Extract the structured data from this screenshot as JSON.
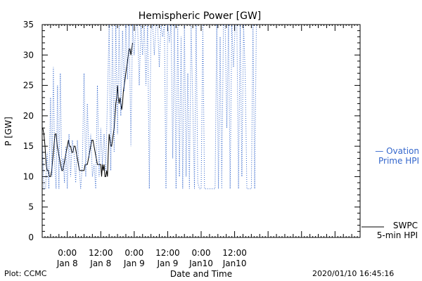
{
  "chart_data": {
    "type": "line",
    "title": "Hemispheric Power [GW]",
    "ylabel": "P [GW]",
    "xlabel": "Date and Time",
    "ylim": [
      0,
      35
    ],
    "xlim_hours": [
      -9,
      105
    ],
    "y_ticks": [
      0,
      5,
      10,
      15,
      20,
      25,
      30,
      35
    ],
    "x_ticks": [
      {
        "hour": 0,
        "label": [
          "0:00",
          "Jan 8"
        ]
      },
      {
        "hour": 12,
        "label": [
          "12:00",
          "Jan 8"
        ]
      },
      {
        "hour": 24,
        "label": [
          "0:00",
          "Jan 9"
        ]
      },
      {
        "hour": 36,
        "label": [
          "12:00",
          "Jan 9"
        ]
      },
      {
        "hour": 48,
        "label": [
          "0:00",
          "Jan10"
        ]
      },
      {
        "hour": 60,
        "label": [
          "12:00",
          "Jan10"
        ]
      }
    ],
    "series": [
      {
        "name": "SWPC 5-min HPI",
        "color": "#000000",
        "style": "solid",
        "points": [
          [
            -8.8,
            18
          ],
          [
            -8.4,
            17
          ],
          [
            -8.0,
            15
          ],
          [
            -7.6,
            12
          ],
          [
            -7.2,
            11
          ],
          [
            -6.8,
            11
          ],
          [
            -6.4,
            10
          ],
          [
            -6.0,
            10
          ],
          [
            -5.6,
            11
          ],
          [
            -5.2,
            13
          ],
          [
            -4.8,
            15
          ],
          [
            -4.4,
            17
          ],
          [
            -4.0,
            17
          ],
          [
            -3.6,
            15
          ],
          [
            -3.2,
            14
          ],
          [
            -2.8,
            13
          ],
          [
            -2.4,
            12
          ],
          [
            -2.0,
            11
          ],
          [
            -1.6,
            11
          ],
          [
            -1.2,
            12
          ],
          [
            -0.8,
            13
          ],
          [
            -0.4,
            14
          ],
          [
            0.0,
            15
          ],
          [
            0.4,
            16
          ],
          [
            0.8,
            15
          ],
          [
            1.2,
            15
          ],
          [
            1.6,
            14
          ],
          [
            2.0,
            14
          ],
          [
            2.4,
            15
          ],
          [
            2.8,
            15
          ],
          [
            3.2,
            14
          ],
          [
            3.6,
            13
          ],
          [
            4.0,
            12
          ],
          [
            4.4,
            11
          ],
          [
            4.8,
            11
          ],
          [
            5.2,
            11
          ],
          [
            5.6,
            11
          ],
          [
            6.0,
            11
          ],
          [
            6.4,
            12
          ],
          [
            6.8,
            12
          ],
          [
            7.2,
            12
          ],
          [
            7.6,
            13
          ],
          [
            8.0,
            14
          ],
          [
            8.4,
            15
          ],
          [
            8.8,
            16
          ],
          [
            9.2,
            16
          ],
          [
            9.6,
            15
          ],
          [
            10.0,
            14
          ],
          [
            10.4,
            13
          ],
          [
            10.8,
            12
          ],
          [
            11.2,
            12
          ],
          [
            11.6,
            12
          ],
          [
            12.0,
            12
          ],
          [
            12.3,
            10
          ],
          [
            12.6,
            12
          ],
          [
            12.9,
            11
          ],
          [
            13.2,
            12
          ],
          [
            13.5,
            10
          ],
          [
            13.8,
            10
          ],
          [
            14.1,
            11
          ],
          [
            14.4,
            10
          ],
          [
            14.7,
            14
          ],
          [
            15.0,
            17
          ],
          [
            15.3,
            16
          ],
          [
            15.6,
            15
          ],
          [
            15.9,
            15
          ],
          [
            16.2,
            16
          ],
          [
            16.5,
            17
          ],
          [
            16.8,
            18
          ],
          [
            17.1,
            20
          ],
          [
            17.4,
            22
          ],
          [
            17.7,
            23
          ],
          [
            18.0,
            25
          ],
          [
            18.3,
            23
          ],
          [
            18.6,
            22
          ],
          [
            18.9,
            23
          ],
          [
            19.2,
            22
          ],
          [
            19.5,
            21
          ],
          [
            19.8,
            22
          ],
          [
            20.1,
            24
          ],
          [
            20.4,
            25
          ],
          [
            20.7,
            26
          ],
          [
            21.0,
            27
          ],
          [
            21.3,
            28
          ],
          [
            21.6,
            29
          ],
          [
            21.9,
            30
          ],
          [
            22.2,
            31
          ],
          [
            22.5,
            31
          ],
          [
            22.8,
            30
          ],
          [
            23.1,
            31
          ],
          [
            23.4,
            32
          ]
        ]
      },
      {
        "name": "Ovation Prime HPI",
        "color": "#3366cc",
        "style": "dotted",
        "points": [
          [
            -9.0,
            16
          ],
          [
            -8.4,
            8
          ],
          [
            -7.8,
            8
          ],
          [
            -7.2,
            14
          ],
          [
            -6.6,
            8
          ],
          [
            -6.0,
            23
          ],
          [
            -5.5,
            10
          ],
          [
            -5.0,
            28
          ],
          [
            -4.5,
            12
          ],
          [
            -4.0,
            8
          ],
          [
            -3.5,
            25
          ],
          [
            -3.0,
            8
          ],
          [
            -2.5,
            27
          ],
          [
            -2.0,
            11
          ],
          [
            -1.5,
            13
          ],
          [
            -1.0,
            9
          ],
          [
            -0.5,
            15
          ],
          [
            0.0,
            8
          ],
          [
            0.6,
            17
          ],
          [
            1.2,
            10
          ],
          [
            1.8,
            16
          ],
          [
            2.4,
            14
          ],
          [
            3.0,
            9
          ],
          [
            3.6,
            16
          ],
          [
            4.2,
            12
          ],
          [
            4.8,
            8
          ],
          [
            5.4,
            12
          ],
          [
            6.0,
            27
          ],
          [
            6.6,
            10
          ],
          [
            7.2,
            22
          ],
          [
            7.8,
            13
          ],
          [
            8.4,
            17
          ],
          [
            9.0,
            10
          ],
          [
            9.6,
            12
          ],
          [
            10.2,
            8
          ],
          [
            10.8,
            25
          ],
          [
            11.4,
            10
          ],
          [
            12.0,
            18
          ],
          [
            12.6,
            12
          ],
          [
            13.2,
            17
          ],
          [
            13.8,
            11
          ],
          [
            14.4,
            23
          ],
          [
            15.0,
            35
          ],
          [
            15.6,
            11
          ],
          [
            16.2,
            35
          ],
          [
            16.8,
            14
          ],
          [
            17.4,
            35
          ],
          [
            18.0,
            17
          ],
          [
            18.6,
            35
          ],
          [
            19.2,
            20
          ],
          [
            19.8,
            34
          ],
          [
            20.4,
            24
          ],
          [
            21.0,
            35
          ],
          [
            21.6,
            26
          ],
          [
            22.2,
            35
          ],
          [
            22.8,
            15
          ],
          [
            23.4,
            35
          ],
          [
            24.0,
            30
          ],
          [
            24.6,
            35
          ],
          [
            25.2,
            35
          ],
          [
            25.8,
            25
          ],
          [
            26.4,
            35
          ],
          [
            27.0,
            30
          ],
          [
            27.6,
            35
          ],
          [
            28.2,
            25
          ],
          [
            28.8,
            35
          ],
          [
            29.4,
            8
          ],
          [
            30.0,
            34
          ],
          [
            30.6,
            35
          ],
          [
            31.2,
            30
          ],
          [
            31.8,
            35
          ],
          [
            32.4,
            35
          ],
          [
            33.0,
            28
          ],
          [
            33.6,
            35
          ],
          [
            34.2,
            33
          ],
          [
            34.8,
            35
          ],
          [
            35.4,
            8
          ],
          [
            36.0,
            35
          ],
          [
            36.6,
            32
          ],
          [
            37.2,
            35
          ],
          [
            37.8,
            13
          ],
          [
            38.4,
            35
          ],
          [
            39.0,
            8
          ],
          [
            39.6,
            35
          ],
          [
            40.2,
            10
          ],
          [
            40.8,
            33
          ],
          [
            41.4,
            8
          ],
          [
            42.0,
            35
          ],
          [
            42.6,
            10
          ],
          [
            43.2,
            27
          ],
          [
            43.8,
            8
          ],
          [
            44.4,
            35
          ],
          [
            45.0,
            22
          ],
          [
            45.6,
            8
          ],
          [
            46.2,
            35
          ],
          [
            46.8,
            9
          ],
          [
            47.4,
            8
          ],
          [
            48.0,
            8
          ],
          [
            48.6,
            35
          ],
          [
            49.2,
            8
          ],
          [
            50.0,
            8
          ],
          [
            51.0,
            8
          ],
          [
            52.0,
            8
          ],
          [
            53.0,
            8
          ],
          [
            53.6,
            35
          ],
          [
            54.2,
            8
          ],
          [
            54.8,
            33
          ],
          [
            55.4,
            8
          ],
          [
            56.0,
            35
          ],
          [
            56.6,
            35
          ],
          [
            57.2,
            18
          ],
          [
            57.8,
            35
          ],
          [
            58.4,
            8
          ],
          [
            59.0,
            35
          ],
          [
            59.6,
            28
          ],
          [
            60.2,
            35
          ],
          [
            60.8,
            35
          ],
          [
            61.4,
            8
          ],
          [
            62.0,
            35
          ],
          [
            62.6,
            10
          ],
          [
            63.2,
            35
          ],
          [
            63.8,
            27
          ],
          [
            64.4,
            8
          ],
          [
            65.0,
            8
          ],
          [
            66.0,
            8
          ],
          [
            66.6,
            35
          ],
          [
            67.2,
            8
          ],
          [
            67.8,
            35
          ]
        ]
      }
    ]
  },
  "legend": {
    "ovation_line1": "— Ovation",
    "ovation_line2": "Prime HPI",
    "swpc_line1": "SWPC",
    "swpc_line2": "5-min HPI"
  },
  "footer": {
    "plot_credit": "Plot: CCMC",
    "timestamp": "2020/01/10 16:45:16"
  },
  "colors": {
    "ovation": "#3366cc",
    "swpc": "#000000"
  }
}
